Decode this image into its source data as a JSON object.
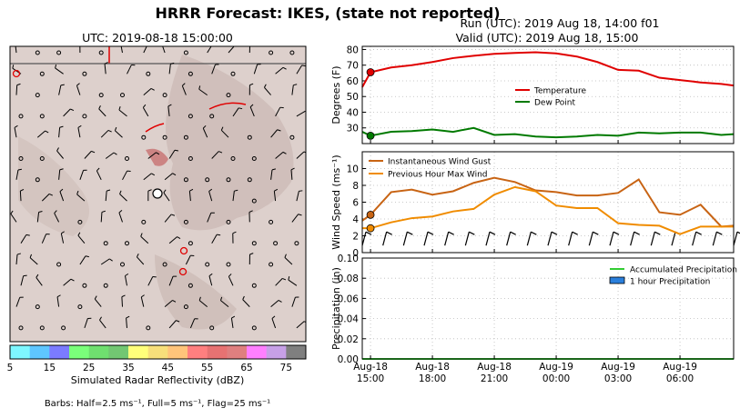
{
  "figure": {
    "title": "HRRR Forecast: IKES, (state not reported)",
    "run_label": "Run (UTC): 2019 Aug 18, 14:00 f01",
    "valid_label": "Valid (UTC): 2019 Aug 18, 15:00"
  },
  "map": {
    "title": "UTC: 2019-08-18 15:00:00",
    "colorbar": {
      "label": "Simulated Radar Reflectivity (dBZ)",
      "ticks": [
        "5",
        "15",
        "25",
        "35",
        "45",
        "55",
        "65",
        "75"
      ],
      "colors": [
        "#7ef7ff",
        "#5ec6ff",
        "#7b7bff",
        "#7aff7a",
        "#6fdf6f",
        "#72c772",
        "#ffff7a",
        "#f7df7a",
        "#ffc47a",
        "#ff7f7f",
        "#e77272",
        "#df7f7f",
        "#ff7fff",
        "#c7a0e7",
        "#7f7f7f"
      ]
    },
    "barb_note": "Barbs: Half=2.5 ms⁻¹, Full=5 ms⁻¹, Flag=25 ms⁻¹"
  },
  "chart_data": [
    {
      "type": "line",
      "ylabel": "Degrees (F)",
      "ylim": [
        20,
        82
      ],
      "yticks": [
        30,
        40,
        50,
        60,
        70,
        80
      ],
      "x_hours": [
        14.6,
        15,
        16,
        17,
        18,
        19,
        20,
        21,
        22,
        23,
        24,
        25,
        26,
        27,
        28,
        29,
        30,
        31,
        32,
        32.6
      ],
      "series": [
        {
          "name": "Temperature",
          "color": "#e00000",
          "values": [
            56,
            65.5,
            68.5,
            70,
            72,
            74.5,
            76,
            77.2,
            77.8,
            78.2,
            77.5,
            75.5,
            72,
            67,
            66.5,
            62,
            60.5,
            59,
            58,
            57
          ]
        },
        {
          "name": "Dew Point",
          "color": "#007a00",
          "values": [
            27.5,
            25,
            27.5,
            28,
            29,
            27.5,
            30,
            25.5,
            26,
            24.5,
            24,
            24.5,
            25.5,
            25,
            27,
            26.5,
            27,
            27,
            25.5,
            26
          ]
        }
      ],
      "legend": "right"
    },
    {
      "type": "line",
      "ylabel": "Wind Speed (ms⁻¹)",
      "ylim": [
        0,
        12
      ],
      "yticks": [
        0,
        2,
        4,
        6,
        8,
        10
      ],
      "x_hours": [
        14.6,
        15,
        16,
        17,
        18,
        19,
        20,
        21,
        22,
        23,
        24,
        25,
        26,
        27,
        28,
        29,
        30,
        31,
        32,
        32.6
      ],
      "series": [
        {
          "name": "Instantaneous Wind Gust",
          "color": "#c86414",
          "values": [
            3.8,
            4.5,
            7.2,
            7.5,
            6.9,
            7.3,
            8.3,
            8.9,
            8.4,
            7.4,
            7.2,
            6.8,
            6.8,
            7.1,
            8.7,
            4.8,
            4.5,
            5.7,
            3.1,
            3.2
          ]
        },
        {
          "name": "Previous Hour Max Wind",
          "color": "#f08c00",
          "values": [
            2.9,
            2.9,
            3.6,
            4.1,
            4.3,
            4.9,
            5.2,
            6.9,
            7.8,
            7.3,
            5.6,
            5.3,
            5.3,
            3.5,
            3.3,
            3.2,
            2.2,
            3.1,
            3.1,
            3.1
          ]
        }
      ],
      "legend": "top-left"
    },
    {
      "type": "line",
      "ylabel": "Precipitation (in)",
      "ylim": [
        0,
        0.1
      ],
      "yticks": [
        "0.00",
        "0.02",
        "0.04",
        "0.06",
        "0.08",
        "0.10"
      ],
      "x_hours": [
        14.6,
        32.6
      ],
      "series": [
        {
          "name": "Accumulated Precipitation",
          "color": "#33cc33",
          "values": [
            0,
            0
          ]
        },
        {
          "name": "1 hour Precipitation",
          "color": "#2a7fdc",
          "values": []
        }
      ],
      "xticks": [
        {
          "hour": 15,
          "date": "Aug-18",
          "time": "15:00"
        },
        {
          "hour": 18,
          "date": "Aug-18",
          "time": "18:00"
        },
        {
          "hour": 21,
          "date": "Aug-18",
          "time": "21:00"
        },
        {
          "hour": 24,
          "date": "Aug-19",
          "time": "00:00"
        },
        {
          "hour": 27,
          "date": "Aug-19",
          "time": "03:00"
        },
        {
          "hour": 30,
          "date": "Aug-19",
          "time": "06:00"
        }
      ],
      "legend": "top-right"
    }
  ]
}
